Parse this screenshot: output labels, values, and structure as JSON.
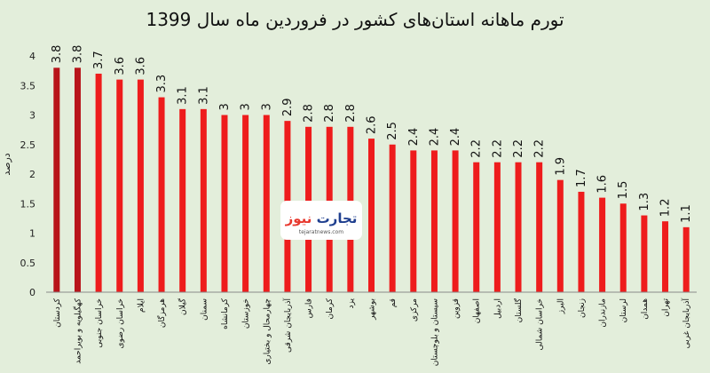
{
  "chart_data": {
    "type": "bar",
    "title": "تورم ماهانه استان‌های کشور در فروردین ماه سال 1399",
    "ylabel": "درصد",
    "xlabel": "",
    "ylim": [
      0,
      4
    ],
    "yticks": [
      "0",
      "0.5",
      "1",
      "1.5",
      "2",
      "2.5",
      "3",
      "3.5",
      "4"
    ],
    "grid": false,
    "legend": "none",
    "categories": [
      "کردستان",
      "کهگیلویه و بویراحمد",
      "خراسان جنوبی",
      "خراسان رضوی",
      "ایلام",
      "هرمزگان",
      "گیلان",
      "سمنان",
      "کرمانشاه",
      "خوزستان",
      "چهارمحال و بختیاری",
      "آذربایجان شرقی",
      "فارس",
      "کرمان",
      "یزد",
      "بوشهر",
      "قم",
      "مرکزی",
      "سیستان و بلوچستان",
      "قزوین",
      "اصفهان",
      "اردبیل",
      "گلستان",
      "خراسان شمالی",
      "البرز",
      "زنجان",
      "مازندران",
      "لرستان",
      "همدان",
      "تهران",
      "آذربایجان غربی"
    ],
    "values": [
      3.8,
      3.8,
      3.7,
      3.6,
      3.6,
      3.3,
      3.1,
      3.1,
      3,
      3,
      3,
      2.9,
      2.8,
      2.8,
      2.8,
      2.6,
      2.5,
      2.4,
      2.4,
      2.4,
      2.2,
      2.2,
      2.2,
      2.2,
      1.9,
      1.7,
      1.6,
      1.5,
      1.3,
      1.2,
      1.1
    ],
    "value_labels": [
      "3.8",
      "3.8",
      "3.7",
      "3.6",
      "3.6",
      "3.3",
      "3.1",
      "3.1",
      "3",
      "3",
      "3",
      "2.9",
      "2.8",
      "2.8",
      "2.8",
      "2.6",
      "2.5",
      "2.4",
      "2.4",
      "2.4",
      "2.2",
      "2.2",
      "2.2",
      "2.2",
      "1.9",
      "1.7",
      "1.6",
      "1.5",
      "1.3",
      "1.2",
      "1.1"
    ],
    "highlight_count": 2,
    "colors": {
      "background": "#e3eedb",
      "bar": "#ee1c1c",
      "bar_highlight": "#b8141a",
      "axis": "#8a8a8a"
    }
  },
  "watermark": {
    "brand_part1": "تجارت",
    "brand_part2": "نیوز",
    "site": "tejaratnews.com",
    "color_dark": "#1f3f8f",
    "color_accent": "#e8392f"
  }
}
